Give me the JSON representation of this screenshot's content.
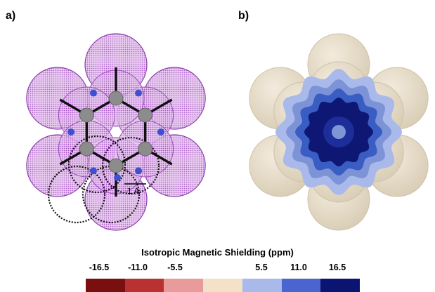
{
  "panels": {
    "a_label": "a)",
    "b_label": "b)"
  },
  "annotations": {
    "scale_label": "1 A"
  },
  "colorbar": {
    "title": "Isotropic Magnetic Shielding (ppm)",
    "ticks": [
      "-16.5",
      "-11.0",
      "-5.5",
      "5.5",
      "11.0",
      "16.5"
    ],
    "colors": [
      "#7a0f0f",
      "#b83232",
      "#e99a9a",
      "#f3e2c8",
      "#a9b9ea",
      "#4a64d0",
      "#0c1472"
    ]
  },
  "colors": {
    "sphere_purple": "#b06ac8",
    "atom_gray": "#8c8c8c",
    "probe_blue": "#3f4fd0",
    "sphere_beige": "#e9dfcb",
    "shield_light": "#7d93d8",
    "shield_mid": "#3a5dc4",
    "shield_dark": "#0e1774"
  }
}
